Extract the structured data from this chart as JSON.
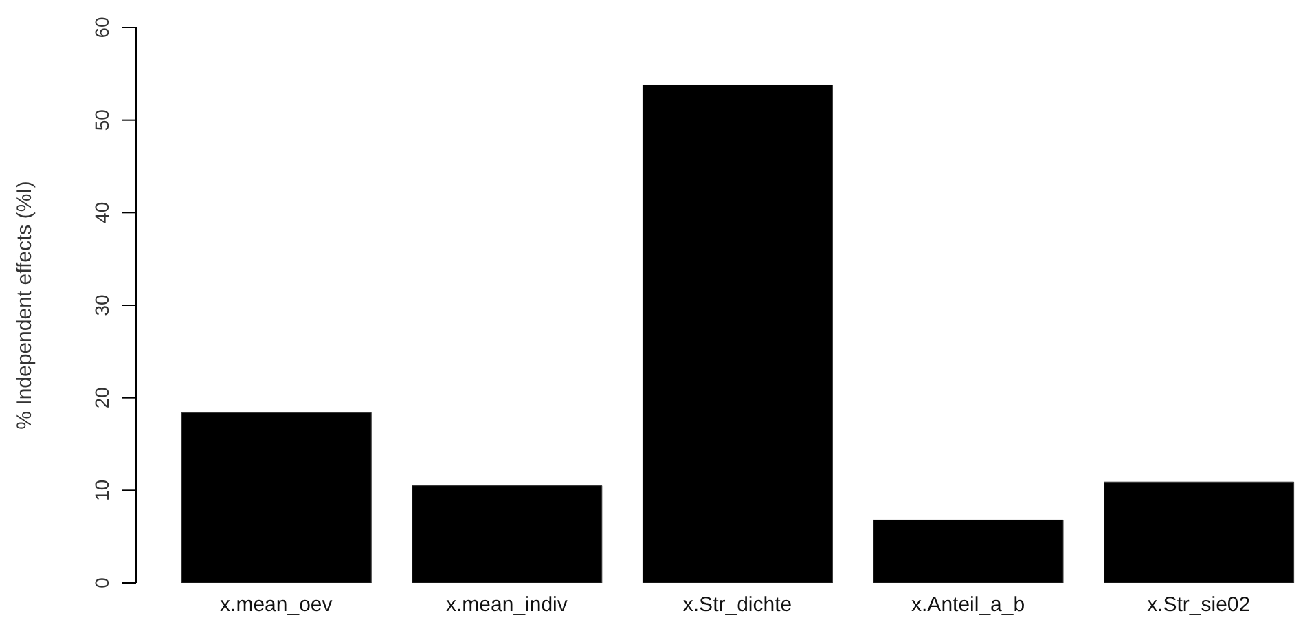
{
  "chart_data": {
    "type": "bar",
    "ylabel": "% Independent effects (%I)",
    "categories": [
      "x.mean_oev",
      "x.mean_indiv",
      "x.Str_dichte",
      "x.Anteil_a_b",
      "x.Str_sie02"
    ],
    "values": [
      18.4,
      10.5,
      53.8,
      6.8,
      10.9
    ],
    "color": "#000000",
    "ylim": [
      0,
      60
    ],
    "yticks": [
      0,
      10,
      20,
      30,
      40,
      50,
      60
    ],
    "grid": false
  }
}
